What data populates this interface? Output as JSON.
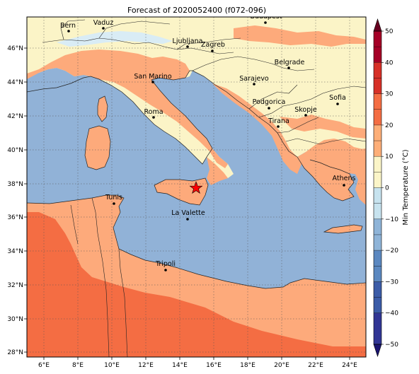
{
  "title": "Forecast of 2020052400 (f072-096)",
  "lon_ticks": [
    "6°E",
    "8°E",
    "10°E",
    "12°E",
    "14°E",
    "16°E",
    "18°E",
    "20°E",
    "22°E",
    "24°E"
  ],
  "lat_ticks": [
    "28°N",
    "30°N",
    "32°N",
    "34°N",
    "36°N",
    "38°N",
    "40°N",
    "42°N",
    "44°N",
    "46°N"
  ],
  "colorbar": {
    "label": "Min Temperature (°C)",
    "ticks": [
      "50",
      "40",
      "30",
      "20",
      "10",
      "0",
      "−10",
      "−20",
      "−30",
      "−40",
      "−50"
    ],
    "levels": [
      -50,
      -40,
      -35,
      -30,
      -25,
      -20,
      -15,
      -10,
      -5,
      0,
      5,
      10,
      15,
      20,
      25,
      30,
      35,
      40,
      45,
      50
    ],
    "colors": {
      "below_min": "#1a1470",
      "minus50_minus40": "#313695",
      "minus40_minus30": "#3b5ca8",
      "minus30_minus20": "#5b88c0",
      "minus20_minus10": "#8fb4d8",
      "minus10_0": "#c7e3ef",
      "0_10": "#fbf5c8",
      "10_20": "#fdae78",
      "20_30": "#f46d43",
      "30_40": "#d73027",
      "40_50": "#a50026",
      "above_max": "#67001f"
    }
  },
  "map_colors": {
    "sea": "#91b2d7",
    "cool_land": "#fbf4c7",
    "warm_land": "#fdaa7b",
    "hot_land": "#f46d43",
    "snow": "#d9ecf5"
  },
  "cities": [
    {
      "name": "Bern"
    },
    {
      "name": "Vaduz"
    },
    {
      "name": "Budapest"
    },
    {
      "name": "Ljubljana"
    },
    {
      "name": "Zagreb"
    },
    {
      "name": "Belgrade"
    },
    {
      "name": "San Marino"
    },
    {
      "name": "Sarajevo"
    },
    {
      "name": "Podgorica"
    },
    {
      "name": "Sofia"
    },
    {
      "name": "Roma"
    },
    {
      "name": "Skopje"
    },
    {
      "name": "Tirana"
    },
    {
      "name": "Athens"
    },
    {
      "name": "Tunis"
    },
    {
      "name": "La Valette"
    },
    {
      "name": "Tripoli"
    }
  ],
  "marker": {
    "symbol": "star",
    "color": "#ff0000"
  }
}
